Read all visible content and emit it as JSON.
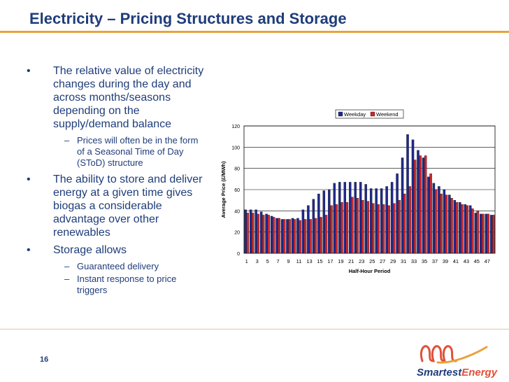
{
  "slide": {
    "title": "Electricity – Pricing Structures and Storage",
    "number": "16",
    "logo": {
      "part1": "Smartest",
      "part2": "Energy"
    }
  },
  "bullets": [
    {
      "level": 1,
      "text": "The relative value of electricity changes during the day and across months/seasons depending on the supply/demand balance"
    },
    {
      "level": 2,
      "text": "Prices will often be in the form of  a Seasonal Time of Day (SToD) structure"
    },
    {
      "level": 1,
      "text": "The ability to store and deliver energy at a given time gives biogas a considerable advantage over other renewables"
    },
    {
      "level": 1,
      "text": "Storage allows"
    },
    {
      "level": 2,
      "text": "Guaranteed delivery"
    },
    {
      "level": 2,
      "text": "Instant response to price triggers"
    }
  ],
  "chart_data": {
    "type": "bar",
    "title": "",
    "xlabel": "Half-Hour Period",
    "ylabel": "Average Price (£/MWh)",
    "ylim": [
      0,
      120
    ],
    "yticks": [
      0,
      20,
      40,
      60,
      80,
      100,
      120
    ],
    "categories": [
      1,
      2,
      3,
      4,
      5,
      6,
      7,
      8,
      9,
      10,
      11,
      12,
      13,
      14,
      15,
      16,
      17,
      18,
      19,
      20,
      21,
      22,
      23,
      24,
      25,
      26,
      27,
      28,
      29,
      30,
      31,
      32,
      33,
      34,
      35,
      36,
      37,
      38,
      39,
      40,
      41,
      42,
      43,
      44,
      45,
      46,
      47,
      48
    ],
    "xtick_labels": [
      "1",
      "3",
      "5",
      "7",
      "9",
      "11",
      "13",
      "15",
      "17",
      "19",
      "21",
      "23",
      "25",
      "27",
      "29",
      "31",
      "33",
      "35",
      "37",
      "39",
      "41",
      "43",
      "45",
      "47"
    ],
    "legend": "top-right",
    "series": [
      {
        "name": "Weekday",
        "color": "#1f2a8c",
        "values": [
          41,
          41,
          41,
          39,
          37,
          35,
          33,
          32,
          32,
          33,
          33,
          41,
          45,
          51,
          56,
          59,
          60,
          66,
          67,
          67,
          67,
          67,
          67,
          65,
          61,
          61,
          61,
          63,
          67,
          75,
          90,
          112,
          107,
          97,
          90,
          72,
          66,
          63,
          60,
          55,
          50,
          48,
          46,
          45,
          38,
          37,
          37,
          36
        ]
      },
      {
        "name": "Weekend",
        "color": "#c8282d",
        "values": [
          38,
          38,
          37,
          36,
          36,
          34,
          33,
          32,
          32,
          32,
          31,
          32,
          32,
          33,
          34,
          36,
          45,
          46,
          48,
          48,
          53,
          52,
          50,
          49,
          47,
          46,
          46,
          45,
          47,
          50,
          56,
          63,
          88,
          92,
          92,
          75,
          60,
          56,
          55,
          52,
          48,
          46,
          45,
          42,
          40,
          37,
          37,
          36
        ]
      }
    ]
  }
}
